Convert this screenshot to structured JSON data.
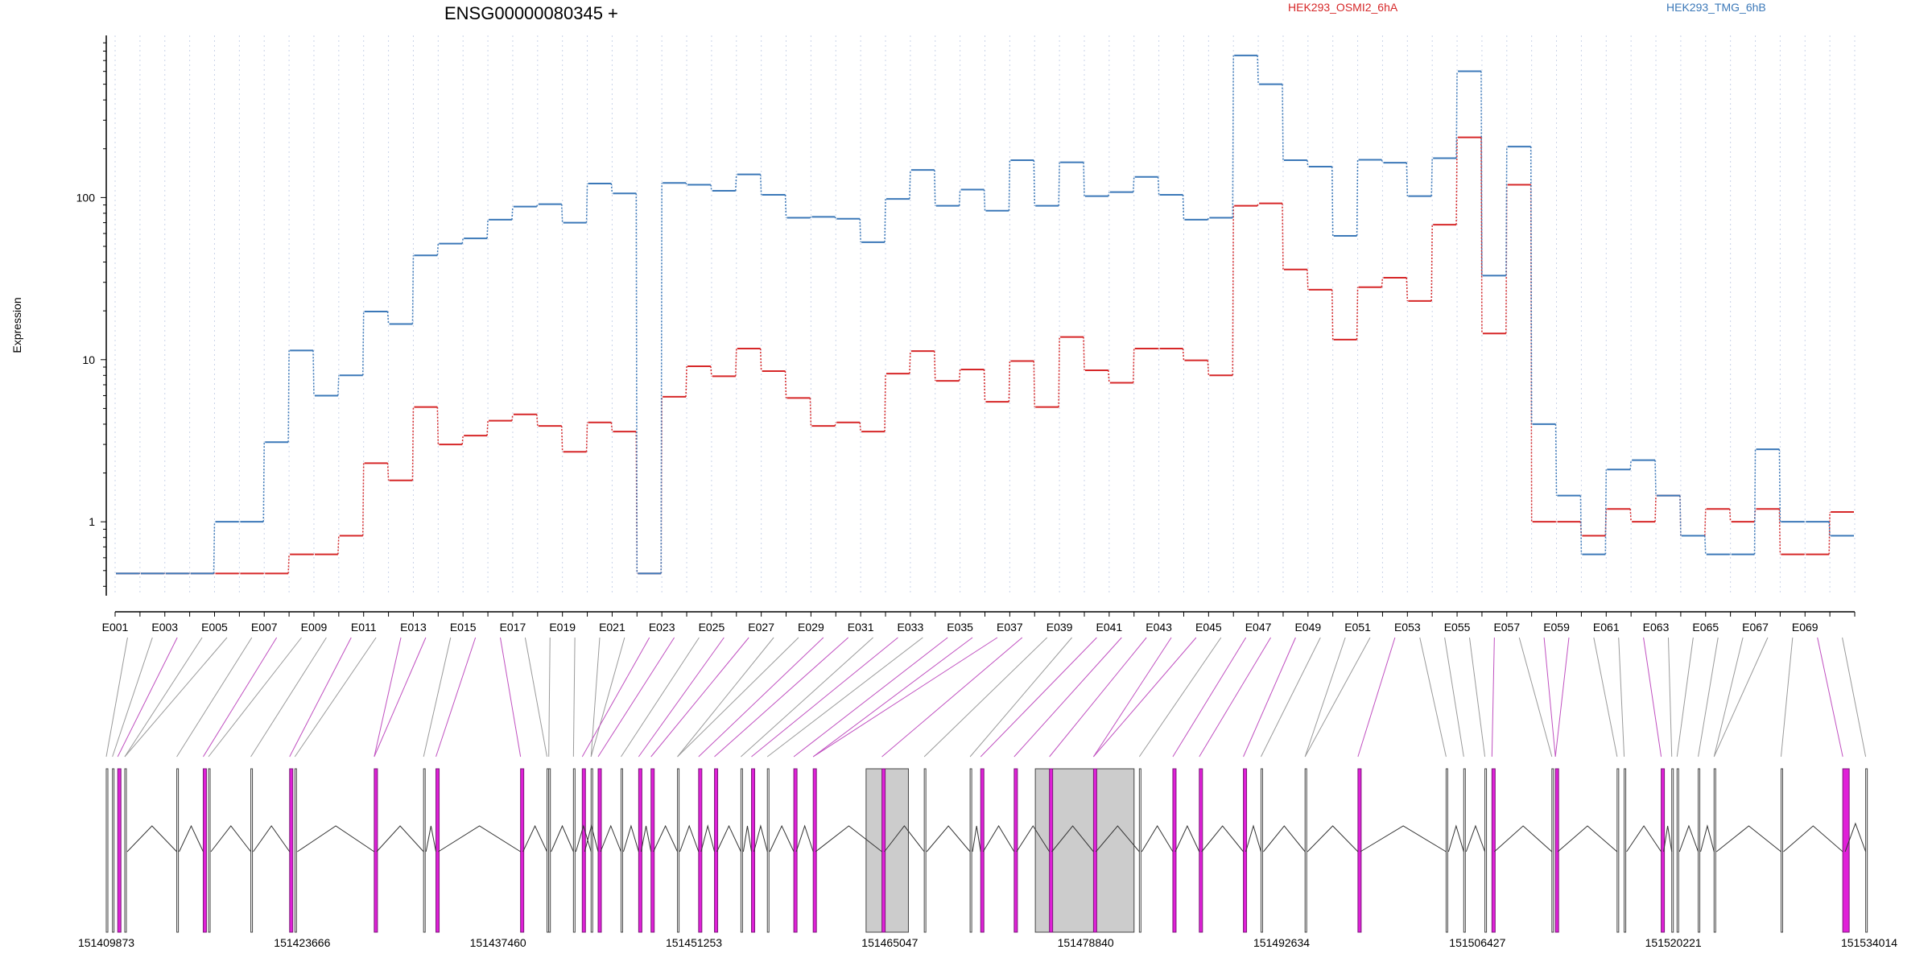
{
  "chart_data": {
    "type": "line",
    "title": "ENSG00000080345 +",
    "ylabel": "Expression",
    "xlabel": "",
    "yscale": "log",
    "ylim": [
      0.35,
      1000
    ],
    "yticks": [
      1,
      10,
      100
    ],
    "ytick_labels": [
      "1",
      "10",
      "100"
    ],
    "grid": "vertical dotted lines at each exon",
    "legend_placement": "top",
    "exon_labels_shown": [
      "E001",
      "E003",
      "E005",
      "E007",
      "E009",
      "E011",
      "E013",
      "E015",
      "E017",
      "E019",
      "E021",
      "E023",
      "E025",
      "E027",
      "E029",
      "E031",
      "E033",
      "E035",
      "E037",
      "E039",
      "E041",
      "E043",
      "E045",
      "E047",
      "E049",
      "E051",
      "E053",
      "E055",
      "E057",
      "E059",
      "E061",
      "E063",
      "E065",
      "E067",
      "E069"
    ],
    "series": [
      {
        "name": "HEK293_OSMI2_6hA",
        "color": "#d62728",
        "values": [
          0.48,
          0.48,
          0.48,
          0.48,
          0.48,
          0.48,
          0.48,
          0.63,
          0.63,
          0.82,
          2.3,
          1.8,
          5.1,
          3.0,
          3.4,
          4.2,
          4.6,
          3.9,
          2.7,
          4.1,
          3.6,
          0.48,
          5.9,
          9.1,
          7.9,
          11.7,
          8.5,
          5.8,
          3.9,
          4.1,
          3.6,
          8.2,
          11.3,
          7.4,
          8.7,
          5.5,
          9.8,
          5.1,
          13.8,
          8.6,
          7.2,
          11.7,
          11.7,
          9.9,
          8.0,
          89,
          92,
          36,
          27,
          13.3,
          28,
          32,
          23,
          68,
          235,
          14.5,
          120,
          1.0,
          1.0,
          0.82,
          1.2,
          1.0,
          1.45,
          0.82,
          1.2,
          1.0,
          1.2,
          0.63,
          0.63,
          1.15
        ]
      },
      {
        "name": "HEK293_TMG_6hB",
        "color": "#3b78b8",
        "values": [
          0.48,
          0.48,
          0.48,
          0.48,
          1.0,
          1.0,
          3.1,
          11.4,
          6.0,
          8.0,
          19.8,
          16.6,
          44,
          52,
          56,
          73,
          88,
          91,
          70,
          122,
          106,
          0.48,
          123,
          120,
          110,
          139,
          104,
          75,
          76,
          74,
          53,
          98,
          148,
          89,
          112,
          83,
          170,
          89,
          165,
          102,
          108,
          134,
          104,
          73,
          75,
          752,
          500,
          170,
          155,
          58,
          171,
          164,
          102,
          175,
          601,
          33,
          206,
          4.0,
          1.45,
          0.63,
          2.1,
          2.4,
          1.45,
          0.82,
          0.63,
          0.63,
          2.8,
          1.0,
          1.0,
          0.82
        ]
      }
    ]
  },
  "genome_axis": {
    "tick_labels": [
      "151409873",
      "151423666",
      "151437460",
      "151451253",
      "151465047",
      "151478840",
      "151492634",
      "151506427",
      "151520221",
      "151534014"
    ],
    "range": [
      151409873,
      151534014
    ],
    "exon_starts_frac": [
      0.0,
      0.0035,
      0.0065,
      0.0105,
      0.04,
      0.055,
      0.058,
      0.082,
      0.104,
      0.107,
      0.152,
      0.18,
      0.187,
      0.235,
      0.25,
      0.251,
      0.265,
      0.275,
      0.27,
      0.279,
      0.292,
      0.302,
      0.309,
      0.324,
      0.336,
      0.345,
      0.36,
      0.366,
      0.375,
      0.39,
      0.401,
      0.44,
      0.464,
      0.49,
      0.496,
      0.515,
      0.535,
      0.56,
      0.586,
      0.605,
      0.62,
      0.645,
      0.655,
      0.68,
      0.71,
      0.76,
      0.77,
      0.782,
      0.786,
      0.82,
      0.822,
      0.857,
      0.861,
      0.882,
      0.888,
      0.891,
      0.903,
      0.912,
      0.95,
      0.985,
      0.998
    ],
    "highlighted_exons": [
      2,
      5,
      8,
      10,
      12,
      13,
      18,
      19,
      21,
      22,
      24,
      25,
      27,
      29,
      30,
      31,
      34,
      35,
      36,
      37,
      39,
      40,
      41,
      44,
      48,
      50,
      53,
      59
    ]
  }
}
